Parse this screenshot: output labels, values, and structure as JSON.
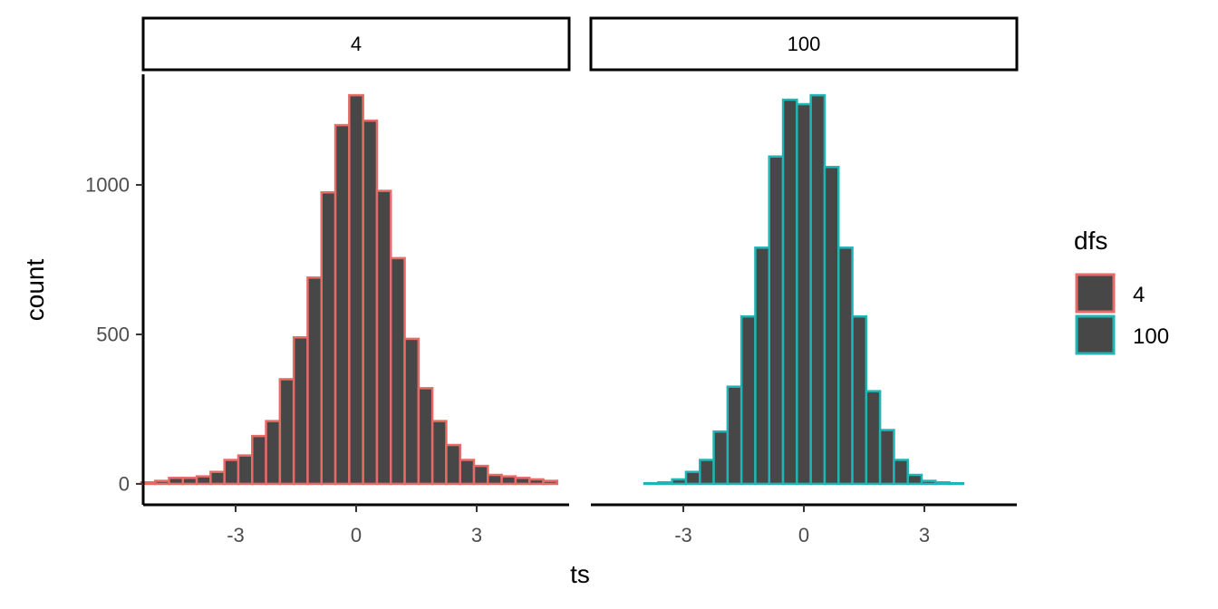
{
  "chart_data": {
    "type": "bar",
    "xlabel": "ts",
    "ylabel": "count",
    "xlim": [
      -5.3,
      5.3
    ],
    "ylim": [
      -70,
      1370
    ],
    "x_ticks": [
      -3,
      0,
      3
    ],
    "x_tick_labels": [
      "-3",
      "0",
      "3"
    ],
    "y_ticks": [
      0,
      500,
      1000
    ],
    "y_tick_labels": [
      "0",
      "500",
      "1000"
    ],
    "bin_width": 0.345,
    "legend": {
      "title": "dfs",
      "position": "right",
      "entries": [
        {
          "label": "4",
          "color": "#E66A66"
        },
        {
          "label": "100",
          "color": "#1FB5B5"
        }
      ]
    },
    "fill_color": "#474747",
    "panels": [
      {
        "strip": "4",
        "color": "#E66A66",
        "x_centers": [
          -5.175,
          -4.83,
          -4.485,
          -4.14,
          -3.795,
          -3.45,
          -3.105,
          -2.76,
          -2.415,
          -2.07,
          -1.725,
          -1.38,
          -1.035,
          -0.69,
          -0.345,
          0.0,
          0.345,
          0.69,
          1.035,
          1.38,
          1.725,
          2.07,
          2.415,
          2.76,
          3.105,
          3.45,
          3.795,
          4.14,
          4.485,
          4.83
        ],
        "values": [
          5,
          10,
          20,
          20,
          25,
          40,
          80,
          95,
          160,
          210,
          350,
          490,
          690,
          975,
          1200,
          1300,
          1215,
          980,
          755,
          485,
          320,
          210,
          130,
          80,
          60,
          30,
          25,
          20,
          15,
          10
        ]
      },
      {
        "strip": "100",
        "color": "#1FB5B5",
        "x_centers": [
          -5.175,
          -4.83,
          -4.485,
          -4.14,
          -3.795,
          -3.45,
          -3.105,
          -2.76,
          -2.415,
          -2.07,
          -1.725,
          -1.38,
          -1.035,
          -0.69,
          -0.345,
          0.0,
          0.345,
          0.69,
          1.035,
          1.38,
          1.725,
          2.07,
          2.415,
          2.76,
          3.105,
          3.45,
          3.795,
          4.14,
          4.485,
          4.83
        ],
        "values": [
          0,
          0,
          0,
          0,
          2,
          5,
          15,
          40,
          80,
          175,
          325,
          560,
          790,
          1095,
          1285,
          1270,
          1300,
          1060,
          790,
          560,
          310,
          180,
          80,
          30,
          10,
          5,
          2,
          0,
          0,
          0
        ]
      }
    ]
  }
}
